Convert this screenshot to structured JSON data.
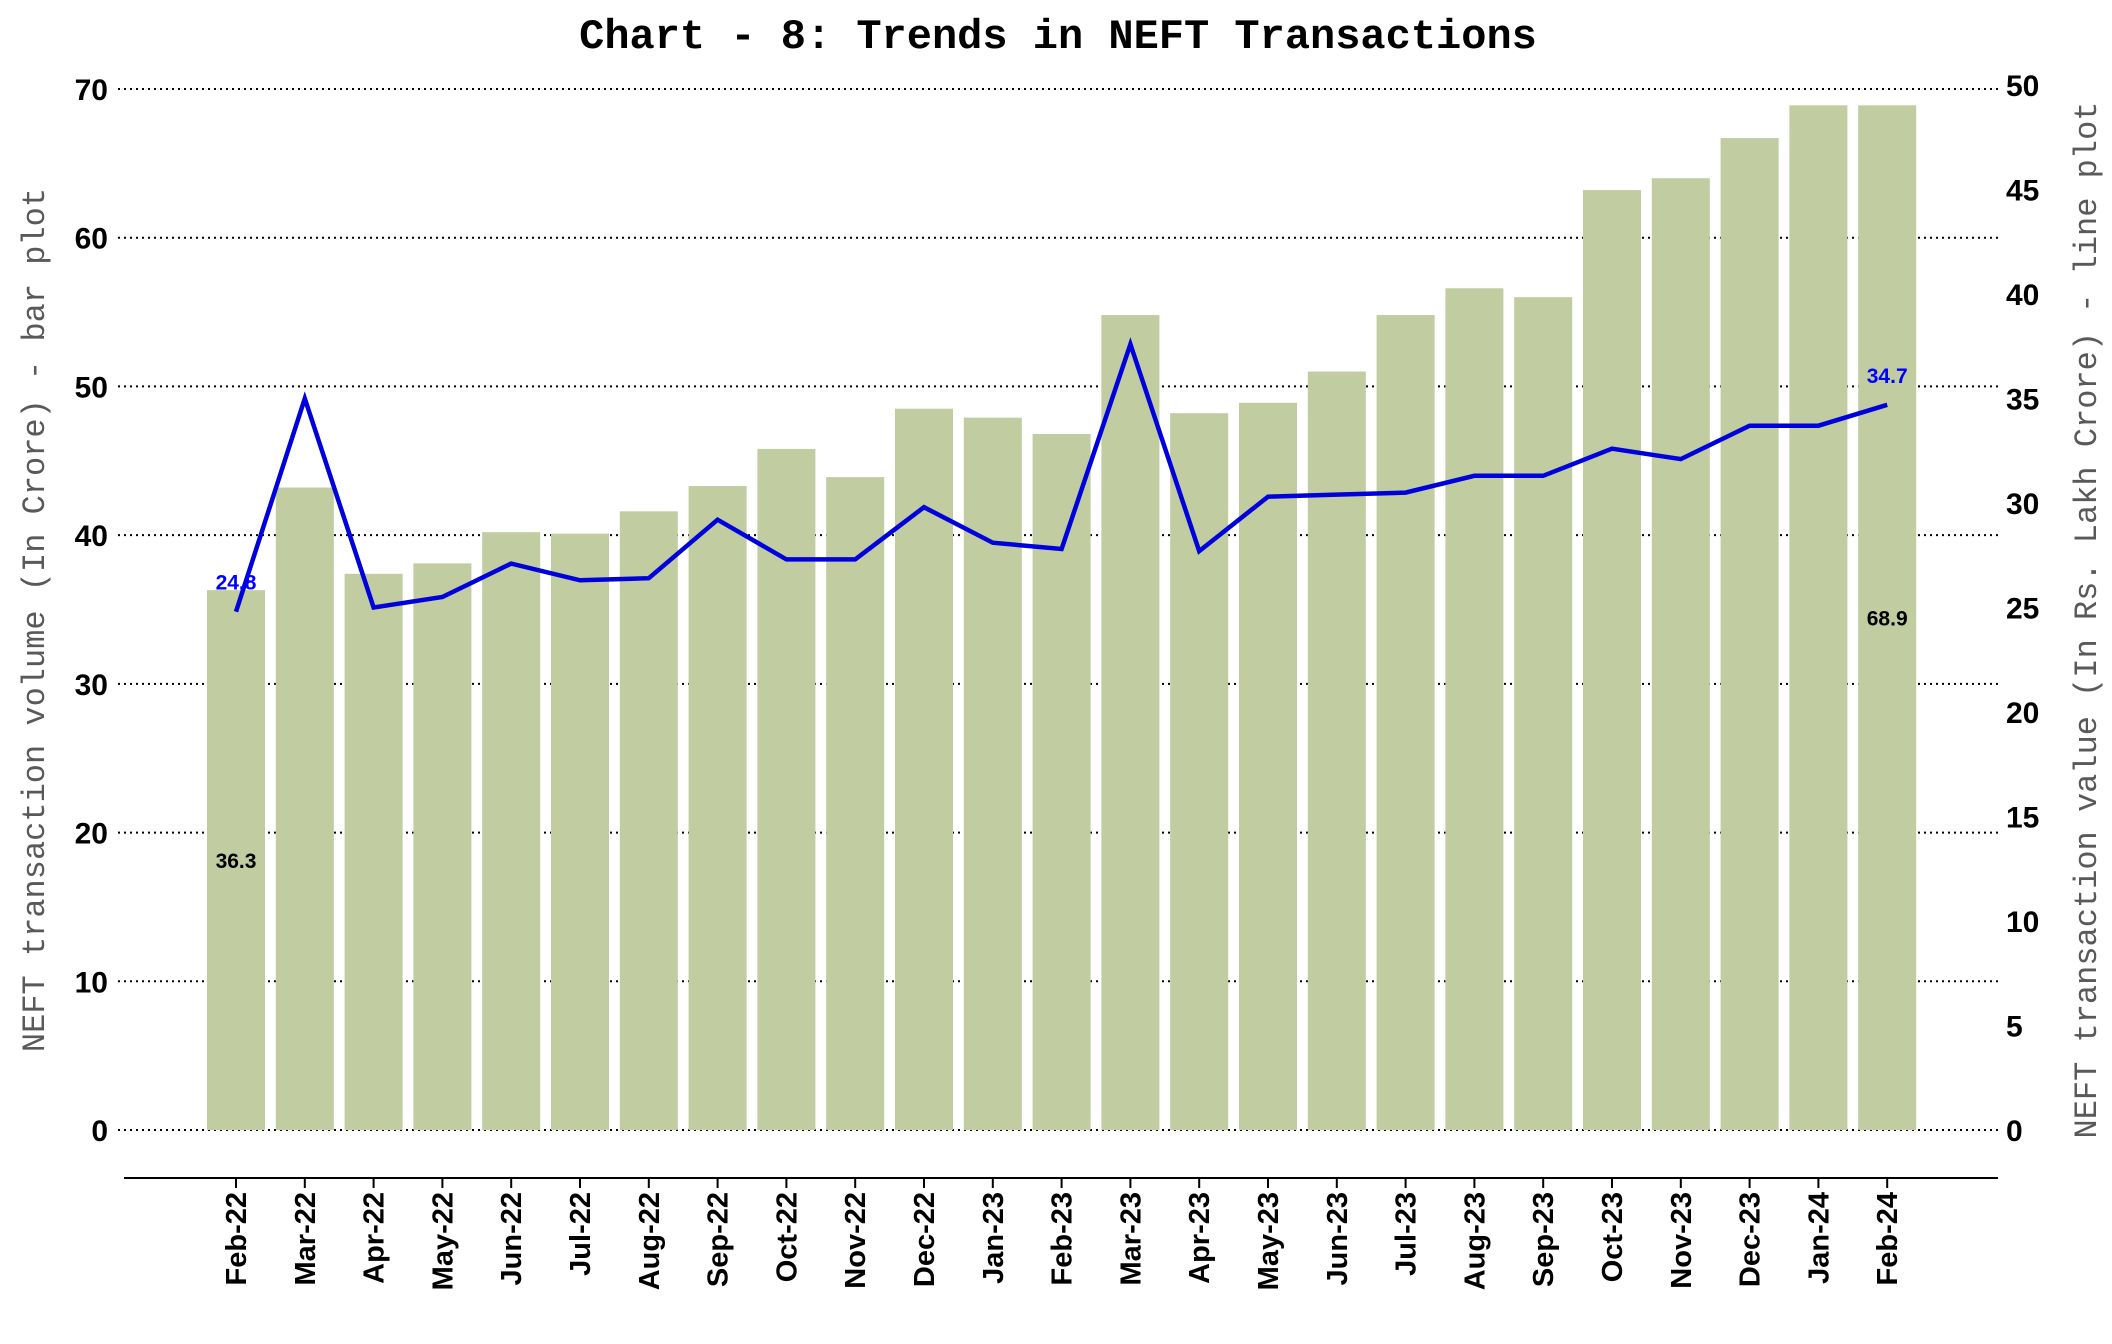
{
  "chart_data": {
    "type": "bar",
    "title": "Chart - 8: Trends in NEFT Transactions",
    "y_left_label": "NEFT transaction volume (In Crore) - bar plot",
    "y_right_label": "NEFT transaction value (In Rs. Lakh Crore) - line plot",
    "y_left_range": [
      0,
      70
    ],
    "y_left_ticks": [
      "0",
      "10",
      "20",
      "30",
      "40",
      "50",
      "60",
      "70"
    ],
    "y_right_range": [
      0,
      50
    ],
    "y_right_ticks": [
      "0",
      "5",
      "10",
      "15",
      "20",
      "25",
      "30",
      "35",
      "40",
      "45",
      "50"
    ],
    "grid": "horizontal dotted",
    "categories": [
      "Feb-22",
      "Mar-22",
      "Apr-22",
      "May-22",
      "Jun-22",
      "Jul-22",
      "Aug-22",
      "Sep-22",
      "Oct-22",
      "Nov-22",
      "Dec-22",
      "Jan-23",
      "Feb-23",
      "Mar-23",
      "Apr-23",
      "May-23",
      "Jun-23",
      "Jul-23",
      "Aug-23",
      "Sep-23",
      "Oct-23",
      "Nov-23",
      "Dec-23",
      "Jan-24",
      "Feb-24"
    ],
    "series": [
      {
        "type": "bar",
        "axis": "left",
        "color": "#c1cca1",
        "values": [
          36.3,
          43.2,
          37.4,
          38.1,
          40.2,
          40.1,
          41.6,
          43.3,
          45.8,
          43.9,
          48.5,
          47.9,
          46.8,
          54.8,
          48.2,
          48.9,
          51.0,
          54.8,
          56.6,
          56.0,
          63.2,
          64.0,
          66.7,
          68.9,
          68.9
        ]
      },
      {
        "type": "line",
        "axis": "right",
        "color": "#0000dd",
        "values": [
          24.8,
          35.0,
          25.0,
          25.5,
          27.1,
          26.3,
          26.4,
          29.2,
          27.3,
          27.3,
          29.8,
          28.1,
          27.8,
          37.6,
          27.7,
          30.3,
          30.4,
          30.5,
          31.3,
          31.3,
          32.6,
          32.1,
          33.7,
          33.7,
          34.7
        ]
      }
    ],
    "data_labels": [
      {
        "series": 0,
        "index": 0,
        "text": "36.3"
      },
      {
        "series": 0,
        "index": 24,
        "text": "68.9"
      },
      {
        "series": 1,
        "index": 0,
        "text": "24.8"
      },
      {
        "series": 1,
        "index": 24,
        "text": "34.7"
      }
    ]
  }
}
